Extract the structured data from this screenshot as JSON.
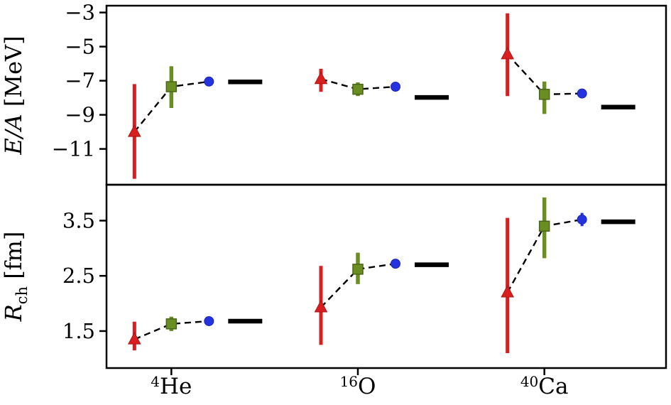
{
  "figure": {
    "description": "Two stacked panels comparing computed ground-state energy per nucleon and charge radius for 4He, 16O and 40Ca against experiment",
    "background": "#ffffff",
    "spine_color": "#000000"
  },
  "chart_data": {
    "type": "scatter",
    "grid": false,
    "legend_position": "none",
    "x_categories": [
      {
        "label": "4He",
        "sup": "4",
        "element": "He"
      },
      {
        "label": "16O",
        "sup": "16",
        "element": "O"
      },
      {
        "label": "40Ca",
        "sup": "40",
        "element": "Ca"
      }
    ],
    "series": [
      {
        "key": "red",
        "marker": "triangle",
        "color": "#d81f1f",
        "edge": "#b01414",
        "errorbar_width": 5
      },
      {
        "key": "green",
        "marker": "square",
        "color": "#6b8e23",
        "edge": "#4a661a",
        "errorbar_width": 5.5
      },
      {
        "key": "blue",
        "marker": "circle",
        "color": "#2433de",
        "edge": "#1a25b5",
        "errorbar_width": 4
      },
      {
        "key": "exp",
        "marker": "hline",
        "color": "#000000",
        "edge": "#000000",
        "errorbar_width": 0
      }
    ],
    "layout": {
      "x_offsets": {
        "red": -92,
        "green": -40,
        "blue": 13,
        "exp": 64
      },
      "exp_bar_halfwidth": 24,
      "connector_dash": "9 6",
      "connector_width": 2.4
    },
    "panels": [
      {
        "id": "energy",
        "ylabel_parts": [
          {
            "text": "E/A",
            "style": "italic"
          },
          {
            "text": " [MeV]",
            "style": "normal"
          }
        ],
        "ylim": [
          -13.1,
          -2.6
        ],
        "ytick_values": [
          -3,
          -5,
          -7,
          -9,
          -11
        ],
        "ytick_labels": [
          "−3",
          "−5",
          "−7",
          "−9",
          "−11"
        ],
        "groups": [
          {
            "isotope": "4He",
            "points": {
              "red": {
                "value": -10.0,
                "err_lo": -12.75,
                "err_hi": -7.2
              },
              "green": {
                "value": -7.35,
                "err_lo": -8.6,
                "err_hi": -6.15
              },
              "blue": {
                "value": -7.05,
                "err_lo": -7.15,
                "err_hi": -6.95
              }
            },
            "experiment": -7.07
          },
          {
            "isotope": "16O",
            "points": {
              "red": {
                "value": -6.9,
                "err_lo": -7.65,
                "err_hi": -6.3
              },
              "green": {
                "value": -7.5,
                "err_lo": -7.9,
                "err_hi": -7.1
              },
              "blue": {
                "value": -7.35,
                "err_lo": -7.45,
                "err_hi": -7.25
              }
            },
            "experiment": -7.98
          },
          {
            "isotope": "40Ca",
            "points": {
              "red": {
                "value": -5.45,
                "err_lo": -7.9,
                "err_hi": -3.05
              },
              "green": {
                "value": -7.8,
                "err_lo": -8.95,
                "err_hi": -7.05
              },
              "blue": {
                "value": -7.75,
                "err_lo": -7.88,
                "err_hi": -7.62
              }
            },
            "experiment": -8.55
          }
        ]
      },
      {
        "id": "radius",
        "ylabel_parts": [
          {
            "text": "R",
            "style": "italic"
          },
          {
            "text": "ch",
            "style": "sub"
          },
          {
            "text": " [fm]",
            "style": "normal"
          }
        ],
        "ylim": [
          0.83,
          4.15
        ],
        "ytick_values": [
          3.5,
          2.5,
          1.5
        ],
        "ytick_labels": [
          "3.5",
          "2.5",
          "1.5"
        ],
        "groups": [
          {
            "isotope": "4He",
            "points": {
              "red": {
                "value": 1.35,
                "err_lo": 1.15,
                "err_hi": 1.67
              },
              "green": {
                "value": 1.63,
                "err_lo": 1.5,
                "err_hi": 1.76
              },
              "blue": {
                "value": 1.68,
                "err_lo": 1.65,
                "err_hi": 1.71
              }
            },
            "experiment": 1.68
          },
          {
            "isotope": "16O",
            "points": {
              "red": {
                "value": 1.93,
                "err_lo": 1.25,
                "err_hi": 2.68
              },
              "green": {
                "value": 2.62,
                "err_lo": 2.35,
                "err_hi": 2.92
              },
              "blue": {
                "value": 2.72,
                "err_lo": 2.68,
                "err_hi": 2.76
              }
            },
            "experiment": 2.7
          },
          {
            "isotope": "40Ca",
            "points": {
              "red": {
                "value": 2.2,
                "err_lo": 1.1,
                "err_hi": 3.55
              },
              "green": {
                "value": 3.4,
                "err_lo": 2.82,
                "err_hi": 3.92
              },
              "blue": {
                "value": 3.52,
                "err_lo": 3.4,
                "err_hi": 3.64
              }
            },
            "experiment": 3.48
          }
        ]
      }
    ]
  }
}
